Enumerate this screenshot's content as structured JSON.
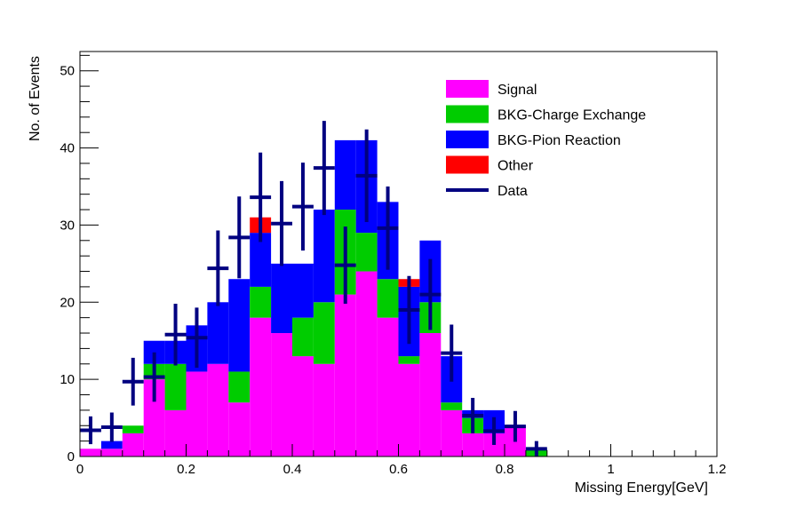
{
  "chart_data": {
    "type": "bar",
    "stacked": true,
    "xlabel": "Missing Energy[GeV]",
    "ylabel": "No. of Events",
    "xlim": [
      0,
      1.2
    ],
    "ylim": [
      0,
      52.5
    ],
    "bin_width": 0.04,
    "bin_edges_start": [
      0,
      0.04,
      0.08,
      0.12,
      0.16,
      0.2,
      0.24,
      0.28,
      0.32,
      0.36,
      0.4,
      0.44,
      0.48,
      0.52,
      0.56,
      0.6,
      0.64,
      0.68,
      0.72,
      0.76,
      0.8,
      0.84
    ],
    "x_ticks": [
      0,
      0.2,
      0.4,
      0.6,
      0.8,
      1,
      1.2
    ],
    "x_tick_labels": [
      "0",
      "0.2",
      "0.4",
      "0.6",
      "0.8",
      "1",
      "1.2"
    ],
    "y_ticks": [
      0,
      10,
      20,
      30,
      40,
      50
    ],
    "y_tick_labels": [
      "0",
      "10",
      "20",
      "30",
      "40",
      "50"
    ],
    "series": [
      {
        "name": "Signal",
        "color": "#ff00ff",
        "values": [
          1,
          1,
          3,
          10,
          6,
          11,
          12,
          7,
          18,
          16,
          13,
          12,
          21,
          24,
          18,
          12,
          16,
          6,
          3,
          3,
          4,
          0
        ]
      },
      {
        "name": "BKG-Charge Exchange",
        "color": "#00cc00",
        "values": [
          0,
          0,
          1,
          2,
          6,
          0,
          0,
          4,
          4,
          0,
          5,
          8,
          11,
          5,
          5,
          1,
          4,
          1,
          2,
          0,
          0,
          1
        ]
      },
      {
        "name": "BKG-Pion Reaction",
        "color": "#0000ff",
        "values": [
          0,
          1,
          0,
          3,
          3,
          6,
          8,
          12,
          7,
          9,
          7,
          12,
          9,
          12,
          10,
          9,
          8,
          6,
          1,
          3,
          0,
          0
        ]
      },
      {
        "name": "Other",
        "color": "#ff0000",
        "values": [
          0,
          0,
          0,
          0,
          0,
          0,
          0,
          0,
          2,
          0,
          0,
          0,
          0,
          0,
          0,
          1,
          0,
          0,
          0,
          0,
          0,
          0
        ]
      }
    ],
    "data_points": {
      "name": "Data",
      "color": "#000080",
      "x": [
        0.02,
        0.06,
        0.1,
        0.14,
        0.18,
        0.22,
        0.26,
        0.3,
        0.34,
        0.38,
        0.42,
        0.46,
        0.5,
        0.54,
        0.58,
        0.62,
        0.66,
        0.7,
        0.74,
        0.78,
        0.82,
        0.86
      ],
      "y": [
        3.4,
        3.8,
        9.7,
        10.3,
        15.8,
        15.4,
        24.4,
        28.4,
        33.6,
        30.2,
        32.4,
        37.4,
        24.8,
        36.4,
        29.6,
        19.0,
        21.0,
        13.4,
        5.3,
        3.3,
        3.9,
        1.0
      ],
      "err": [
        1.8,
        1.9,
        3.1,
        3.2,
        4.0,
        3.9,
        4.9,
        5.3,
        5.8,
        5.5,
        5.7,
        6.1,
        5.0,
        6.0,
        5.4,
        4.4,
        4.6,
        3.7,
        2.3,
        1.8,
        2.0,
        1.0
      ]
    },
    "legend": {
      "position": "top-right",
      "entries": [
        "Signal",
        "BKG-Charge Exchange",
        "BKG-Pion Reaction",
        "Other",
        "Data"
      ]
    }
  }
}
